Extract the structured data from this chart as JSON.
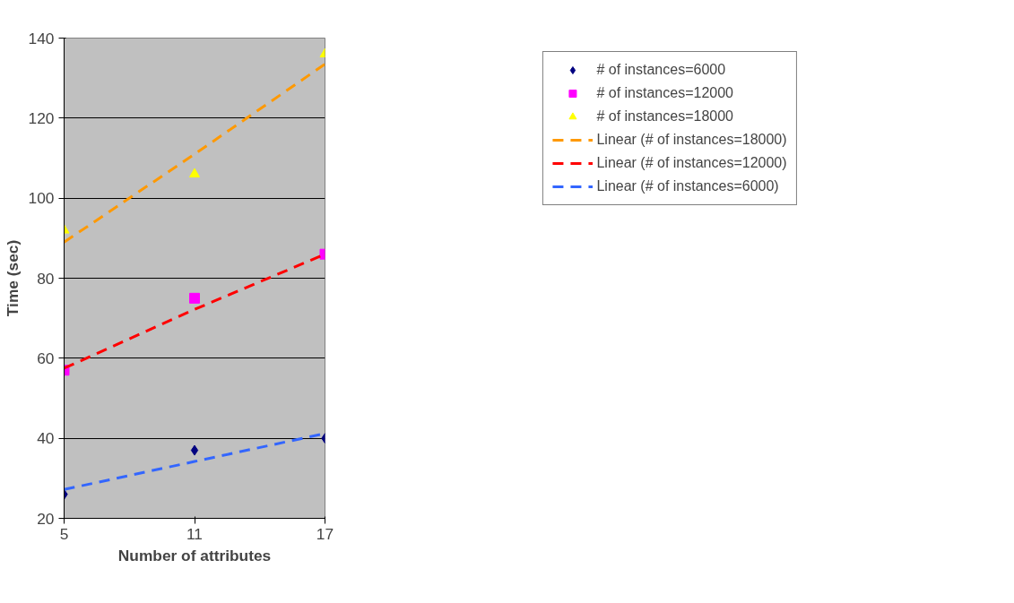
{
  "chart_data": {
    "type": "scatter",
    "xlabel": "Number of attributes",
    "ylabel": "Time (sec)",
    "x": [
      5,
      11,
      17
    ],
    "xlim": [
      5,
      17
    ],
    "xticks": [
      5,
      11,
      17
    ],
    "ylim": [
      20,
      140
    ],
    "yticks": [
      20,
      40,
      60,
      80,
      100,
      120,
      140
    ],
    "grid": "y",
    "legend": "right",
    "series": [
      {
        "name": "# of instances=6000",
        "color": "#000080",
        "marker": "diamond",
        "values": [
          26,
          37,
          40
        ]
      },
      {
        "name": "# of instances=12000",
        "color": "#ff00ff",
        "marker": "square",
        "values": [
          57,
          75,
          86
        ]
      },
      {
        "name": "# of instances=18000",
        "color": "#ffff00",
        "marker": "triangle",
        "values": [
          92,
          106,
          136
        ]
      },
      {
        "name": "Linear (# of instances=18000)",
        "type": "line",
        "color": "#ff9900",
        "line_style": "dashed",
        "marker": "none",
        "values": [
          89,
          111,
          133.5
        ]
      },
      {
        "name": "Linear (# of instances=12000)",
        "type": "line",
        "color": "#ff0000",
        "line_style": "dashed",
        "marker": "none",
        "values": [
          57.5,
          72.2,
          86
        ]
      },
      {
        "name": "Linear (# of instances=6000)",
        "type": "line",
        "color": "#3366ff",
        "line_style": "dashed",
        "marker": "none",
        "values": [
          27.2,
          34.2,
          41.2
        ]
      }
    ]
  }
}
